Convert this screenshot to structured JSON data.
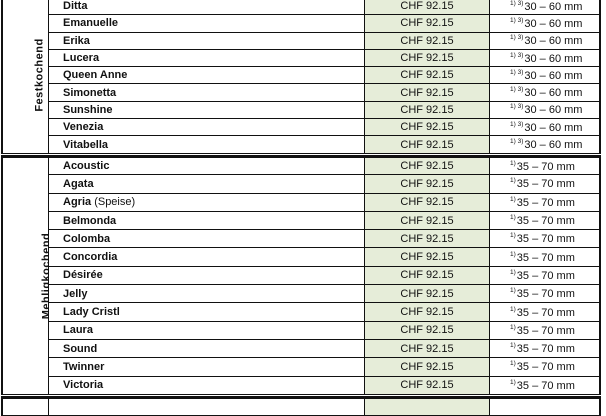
{
  "groups": [
    {
      "label": "Festkochend",
      "rows": [
        {
          "name": "Ditta",
          "price": "CHF 92.15",
          "note": "1) 3)",
          "size": "30 – 60 mm"
        },
        {
          "name": "Emanuelle",
          "price": "CHF 92.15",
          "note": "1) 3)",
          "size": "30 – 60 mm"
        },
        {
          "name": "Erika",
          "price": "CHF 92.15",
          "note": "1) 3)",
          "size": "30 – 60 mm"
        },
        {
          "name": "Lucera",
          "price": "CHF 92.15",
          "note": "1) 3)",
          "size": "30 – 60 mm"
        },
        {
          "name": "Queen Anne",
          "price": "CHF 92.15",
          "note": "1) 3)",
          "size": "30 – 60 mm"
        },
        {
          "name": "Simonetta",
          "price": "CHF 92.15",
          "note": "1) 3)",
          "size": "30 – 60 mm"
        },
        {
          "name": "Sunshine",
          "price": "CHF 92.15",
          "note": "1) 3)",
          "size": "30 – 60 mm"
        },
        {
          "name": "Venezia",
          "price": "CHF 92.15",
          "note": "1) 3)",
          "size": "30 – 60 mm"
        },
        {
          "name": "Vitabella",
          "price": "CHF 92.15",
          "note": "1) 3)",
          "size": "30 – 60 mm"
        }
      ]
    },
    {
      "label": "Mehligkochend",
      "rows": [
        {
          "name": "Acoustic",
          "price": "CHF 92.15",
          "note": "1)",
          "size": "35 – 70 mm"
        },
        {
          "name": "Agata",
          "price": "CHF 92.15",
          "note": "1)",
          "size": "35 – 70 mm"
        },
        {
          "name": "Agria",
          "sub": "(Speise)",
          "price": "CHF 92.15",
          "note": "1)",
          "size": "35 – 70 mm"
        },
        {
          "name": "Belmonda",
          "price": "CHF 92.15",
          "note": "1)",
          "size": "35 – 70 mm"
        },
        {
          "name": "Colomba",
          "price": "CHF 92.15",
          "note": "1)",
          "size": "35 – 70 mm"
        },
        {
          "name": "Concordia",
          "price": "CHF 92.15",
          "note": "1)",
          "size": "35 – 70 mm"
        },
        {
          "name": "Désirée",
          "price": "CHF 92.15",
          "note": "1)",
          "size": "35 – 70 mm"
        },
        {
          "name": "Jelly",
          "price": "CHF 92.15",
          "note": "1)",
          "size": "35 – 70 mm"
        },
        {
          "name": "Lady Cristl",
          "price": "CHF 92.15",
          "note": "1)",
          "size": "35 – 70 mm"
        },
        {
          "name": "Laura",
          "price": "CHF 92.15",
          "note": "1)",
          "size": "35 – 70 mm"
        },
        {
          "name": "Sound",
          "price": "CHF 92.15",
          "note": "1)",
          "size": "35 – 70 mm"
        },
        {
          "name": "Twinner",
          "price": "CHF 92.15",
          "note": "1)",
          "size": "35 – 70 mm"
        },
        {
          "name": "Victoria",
          "price": "CHF 92.15",
          "note": "1)",
          "size": "35 – 70 mm"
        }
      ]
    }
  ]
}
